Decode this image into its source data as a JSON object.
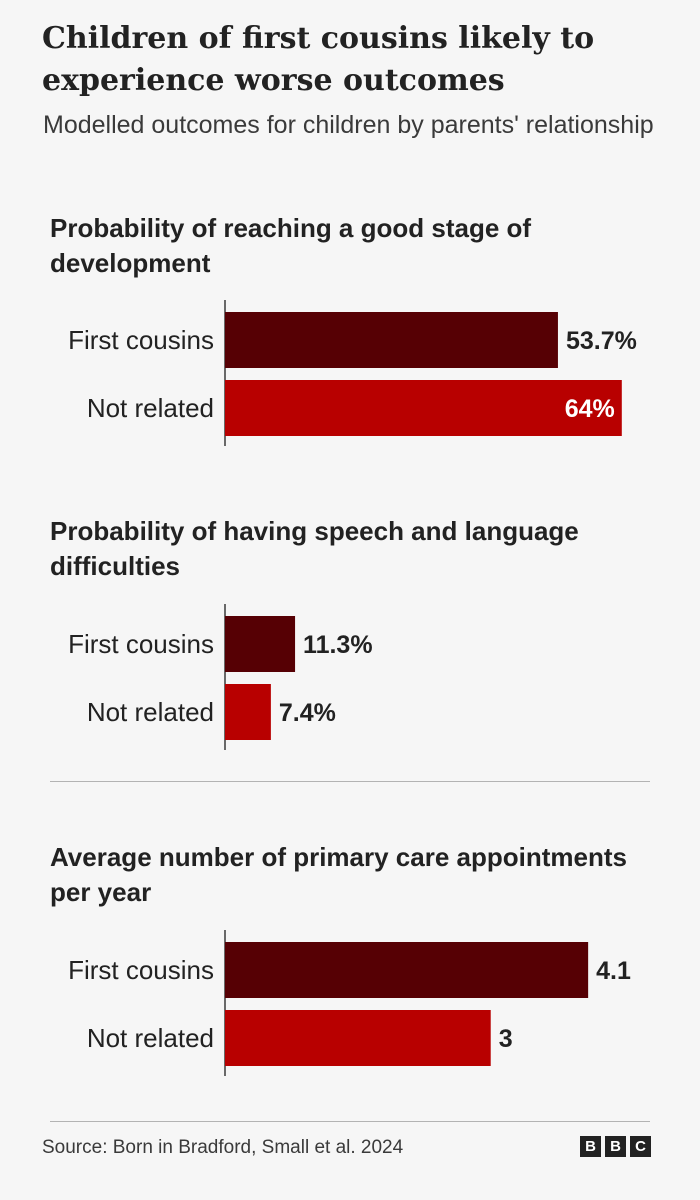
{
  "header": {
    "title": "Children of first cousins likely to experience worse outcomes",
    "subtitle": "Modelled outcomes for children by parents' relationship"
  },
  "colors": {
    "first_cousins": "#560004",
    "not_related": "#b80000",
    "axis": "#3a3a3a"
  },
  "chart_data": [
    {
      "type": "bar",
      "orientation": "horizontal",
      "title": "Probability of reaching a good stage of development",
      "categories": [
        "First cousins",
        "Not related"
      ],
      "values": [
        53.7,
        64
      ],
      "value_labels": [
        "53.7%",
        "64%"
      ],
      "xlim": [
        0,
        70
      ]
    },
    {
      "type": "bar",
      "orientation": "horizontal",
      "title": "Probability of having speech and language difficulties",
      "categories": [
        "First cousins",
        "Not related"
      ],
      "values": [
        11.3,
        7.4
      ],
      "value_labels": [
        "11.3%",
        "7.4%"
      ],
      "xlim": [
        0,
        70
      ]
    },
    {
      "type": "bar",
      "orientation": "horizontal",
      "title": "Average number of primary care appointments per year",
      "categories": [
        "First cousins",
        "Not related"
      ],
      "values": [
        4.1,
        3
      ],
      "value_labels": [
        "4.1",
        "3"
      ],
      "xlim": [
        0,
        4.9
      ]
    }
  ],
  "footer": {
    "source": "Source: Born in Bradford, Small et al. 2024",
    "logo_letters": [
      "B",
      "B",
      "C"
    ]
  }
}
